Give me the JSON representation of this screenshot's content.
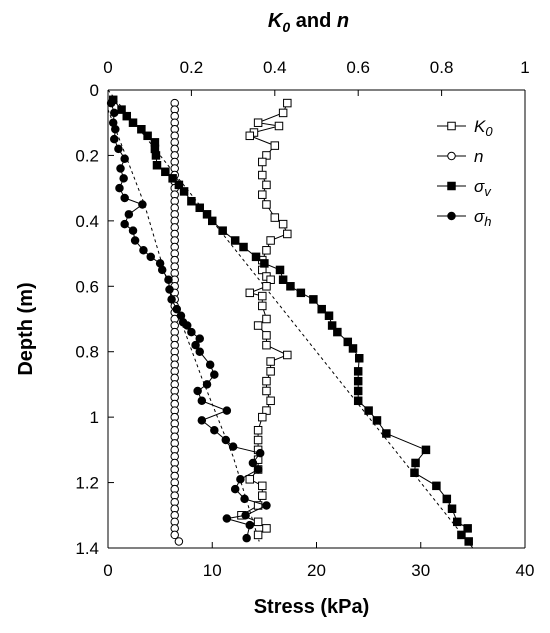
{
  "chart_data": {
    "type": "scatter",
    "title": "",
    "xlabel_bottom": "Stress (kPa)",
    "xlabel_top_parts": [
      "K",
      "0",
      " and ",
      "n"
    ],
    "ylabel": "Depth (m)",
    "xlim_bottom": [
      0,
      40
    ],
    "xlim_top": [
      0,
      1
    ],
    "ylim": [
      0,
      1.4
    ],
    "y_inverted": true,
    "grid": false,
    "legend_position": "top-right",
    "x_ticks_bottom": [
      "0",
      "10",
      "20",
      "30",
      "40"
    ],
    "x_ticks_top": [
      "0",
      "0.2",
      "0.4",
      "0.6",
      "0.8",
      "1"
    ],
    "y_ticks": [
      "0",
      "0.2",
      "0.4",
      "0.6",
      "0.8",
      "1",
      "1.2",
      "1.4"
    ],
    "legend": [
      {
        "label": "K",
        "sub": "0",
        "marker": "open-square"
      },
      {
        "label": "n",
        "sub": "",
        "marker": "open-circle"
      },
      {
        "label": "σ",
        "sub": "v",
        "marker": "filled-square"
      },
      {
        "label": "σ",
        "sub": "h",
        "marker": "filled-circle"
      }
    ],
    "series": [
      {
        "key": "K0",
        "axis": "top",
        "marker": "open-square",
        "points": [
          [
            0.43,
            0.04
          ],
          [
            0.42,
            0.07
          ],
          [
            0.36,
            0.1
          ],
          [
            0.41,
            0.11
          ],
          [
            0.35,
            0.13
          ],
          [
            0.34,
            0.14
          ],
          [
            0.4,
            0.17
          ],
          [
            0.38,
            0.2
          ],
          [
            0.37,
            0.22
          ],
          [
            0.37,
            0.26
          ],
          [
            0.38,
            0.29
          ],
          [
            0.37,
            0.32
          ],
          [
            0.38,
            0.35
          ],
          [
            0.4,
            0.39
          ],
          [
            0.42,
            0.41
          ],
          [
            0.43,
            0.44
          ],
          [
            0.39,
            0.46
          ],
          [
            0.38,
            0.49
          ],
          [
            0.37,
            0.52
          ],
          [
            0.37,
            0.55
          ],
          [
            0.38,
            0.57
          ],
          [
            0.39,
            0.58
          ],
          [
            0.38,
            0.6
          ],
          [
            0.34,
            0.62
          ],
          [
            0.37,
            0.63
          ],
          [
            0.37,
            0.66
          ],
          [
            0.38,
            0.7
          ],
          [
            0.36,
            0.72
          ],
          [
            0.38,
            0.75
          ],
          [
            0.38,
            0.78
          ],
          [
            0.43,
            0.81
          ],
          [
            0.39,
            0.83
          ],
          [
            0.39,
            0.86
          ],
          [
            0.38,
            0.89
          ],
          [
            0.38,
            0.92
          ],
          [
            0.39,
            0.95
          ],
          [
            0.38,
            0.98
          ],
          [
            0.37,
            1.0
          ],
          [
            0.36,
            1.04
          ],
          [
            0.36,
            1.07
          ],
          [
            0.36,
            1.1
          ],
          [
            0.36,
            1.13
          ],
          [
            0.36,
            1.16
          ],
          [
            0.34,
            1.19
          ],
          [
            0.37,
            1.21
          ],
          [
            0.37,
            1.24
          ],
          [
            0.36,
            1.27
          ],
          [
            0.32,
            1.3
          ],
          [
            0.36,
            1.32
          ],
          [
            0.38,
            1.34
          ],
          [
            0.36,
            1.36
          ]
        ]
      },
      {
        "key": "n",
        "axis": "top",
        "marker": "open-circle",
        "points": [
          [
            0.16,
            0.04
          ],
          [
            0.16,
            0.06
          ],
          [
            0.16,
            0.08
          ],
          [
            0.16,
            0.1
          ],
          [
            0.16,
            0.12
          ],
          [
            0.16,
            0.14
          ],
          [
            0.16,
            0.16
          ],
          [
            0.16,
            0.18
          ],
          [
            0.16,
            0.2
          ],
          [
            0.16,
            0.22
          ],
          [
            0.16,
            0.24
          ],
          [
            0.16,
            0.26
          ],
          [
            0.16,
            0.28
          ],
          [
            0.16,
            0.3
          ],
          [
            0.16,
            0.32
          ],
          [
            0.16,
            0.34
          ],
          [
            0.16,
            0.36
          ],
          [
            0.16,
            0.38
          ],
          [
            0.16,
            0.4
          ],
          [
            0.16,
            0.42
          ],
          [
            0.16,
            0.44
          ],
          [
            0.16,
            0.46
          ],
          [
            0.16,
            0.48
          ],
          [
            0.16,
            0.5
          ],
          [
            0.16,
            0.52
          ],
          [
            0.16,
            0.54
          ],
          [
            0.16,
            0.56
          ],
          [
            0.16,
            0.58
          ],
          [
            0.16,
            0.6
          ],
          [
            0.16,
            0.62
          ],
          [
            0.16,
            0.64
          ],
          [
            0.16,
            0.66
          ],
          [
            0.16,
            0.68
          ],
          [
            0.16,
            0.7
          ],
          [
            0.16,
            0.72
          ],
          [
            0.16,
            0.74
          ],
          [
            0.16,
            0.76
          ],
          [
            0.16,
            0.78
          ],
          [
            0.16,
            0.8
          ],
          [
            0.16,
            0.82
          ],
          [
            0.16,
            0.84
          ],
          [
            0.16,
            0.86
          ],
          [
            0.16,
            0.88
          ],
          [
            0.16,
            0.9
          ],
          [
            0.16,
            0.92
          ],
          [
            0.16,
            0.94
          ],
          [
            0.16,
            0.96
          ],
          [
            0.16,
            0.98
          ],
          [
            0.16,
            1.0
          ],
          [
            0.16,
            1.02
          ],
          [
            0.16,
            1.04
          ],
          [
            0.16,
            1.06
          ],
          [
            0.16,
            1.08
          ],
          [
            0.16,
            1.1
          ],
          [
            0.16,
            1.12
          ],
          [
            0.16,
            1.14
          ],
          [
            0.16,
            1.16
          ],
          [
            0.16,
            1.18
          ],
          [
            0.16,
            1.2
          ],
          [
            0.16,
            1.22
          ],
          [
            0.16,
            1.24
          ],
          [
            0.16,
            1.26
          ],
          [
            0.16,
            1.28
          ],
          [
            0.16,
            1.3
          ],
          [
            0.16,
            1.32
          ],
          [
            0.16,
            1.34
          ],
          [
            0.16,
            1.36
          ],
          [
            0.17,
            1.38
          ]
        ]
      },
      {
        "key": "sigma_v",
        "axis": "bottom",
        "marker": "filled-square",
        "points": [
          [
            0.5,
            0.03
          ],
          [
            1.3,
            0.06
          ],
          [
            1.8,
            0.08
          ],
          [
            2.4,
            0.1
          ],
          [
            3.2,
            0.12
          ],
          [
            3.8,
            0.14
          ],
          [
            4.5,
            0.16
          ],
          [
            4.5,
            0.18
          ],
          [
            4.6,
            0.2
          ],
          [
            4.7,
            0.23
          ],
          [
            5.5,
            0.25
          ],
          [
            6.2,
            0.27
          ],
          [
            6.8,
            0.29
          ],
          [
            7.3,
            0.31
          ],
          [
            8.0,
            0.34
          ],
          [
            8.8,
            0.36
          ],
          [
            9.5,
            0.38
          ],
          [
            10.0,
            0.4
          ],
          [
            11.0,
            0.43
          ],
          [
            12.2,
            0.46
          ],
          [
            13.0,
            0.48
          ],
          [
            14.2,
            0.51
          ],
          [
            15.0,
            0.53
          ],
          [
            16.5,
            0.55
          ],
          [
            16.8,
            0.58
          ],
          [
            17.5,
            0.6
          ],
          [
            18.5,
            0.62
          ],
          [
            19.7,
            0.64
          ],
          [
            20.5,
            0.67
          ],
          [
            21.2,
            0.69
          ],
          [
            21.5,
            0.72
          ],
          [
            22.0,
            0.74
          ],
          [
            23.0,
            0.77
          ],
          [
            23.5,
            0.79
          ],
          [
            24.1,
            0.82
          ],
          [
            24.0,
            0.86
          ],
          [
            24.0,
            0.89
          ],
          [
            24.0,
            0.92
          ],
          [
            24.0,
            0.95
          ],
          [
            25.0,
            0.98
          ],
          [
            25.8,
            1.01
          ],
          [
            26.7,
            1.05
          ],
          [
            30.5,
            1.1
          ],
          [
            29.5,
            1.14
          ],
          [
            29.4,
            1.17
          ],
          [
            31.5,
            1.21
          ],
          [
            32.5,
            1.25
          ],
          [
            33.0,
            1.28
          ],
          [
            33.5,
            1.32
          ],
          [
            34.5,
            1.34
          ],
          [
            33.9,
            1.36
          ],
          [
            34.6,
            1.38
          ]
        ]
      },
      {
        "key": "sigma_h",
        "axis": "bottom",
        "marker": "filled-circle",
        "points": [
          [
            0.3,
            0.04
          ],
          [
            0.6,
            0.07
          ],
          [
            0.5,
            0.1
          ],
          [
            0.7,
            0.12
          ],
          [
            0.6,
            0.15
          ],
          [
            1.0,
            0.18
          ],
          [
            1.6,
            0.21
          ],
          [
            1.2,
            0.24
          ],
          [
            1.5,
            0.27
          ],
          [
            1.1,
            0.3
          ],
          [
            1.6,
            0.33
          ],
          [
            3.3,
            0.35
          ],
          [
            2.0,
            0.38
          ],
          [
            1.6,
            0.41
          ],
          [
            2.4,
            0.43
          ],
          [
            2.6,
            0.46
          ],
          [
            3.4,
            0.49
          ],
          [
            4.1,
            0.51
          ],
          [
            5.0,
            0.53
          ],
          [
            5.2,
            0.55
          ],
          [
            5.8,
            0.58
          ],
          [
            5.9,
            0.61
          ],
          [
            6.1,
            0.64
          ],
          [
            6.6,
            0.67
          ],
          [
            7.0,
            0.69
          ],
          [
            7.2,
            0.71
          ],
          [
            7.6,
            0.72
          ],
          [
            8.0,
            0.74
          ],
          [
            8.8,
            0.76
          ],
          [
            8.4,
            0.78
          ],
          [
            8.8,
            0.8
          ],
          [
            9.8,
            0.84
          ],
          [
            10.2,
            0.87
          ],
          [
            9.5,
            0.9
          ],
          [
            8.6,
            0.92
          ],
          [
            9.0,
            0.95
          ],
          [
            11.4,
            0.98
          ],
          [
            9.0,
            1.01
          ],
          [
            10.2,
            1.04
          ],
          [
            11.3,
            1.07
          ],
          [
            12.0,
            1.09
          ],
          [
            14.6,
            1.11
          ],
          [
            13.9,
            1.14
          ],
          [
            14.4,
            1.16
          ],
          [
            12.7,
            1.19
          ],
          [
            12.2,
            1.22
          ],
          [
            13.1,
            1.25
          ],
          [
            15.2,
            1.27
          ],
          [
            13.2,
            1.3
          ],
          [
            11.4,
            1.31
          ],
          [
            13.6,
            1.33
          ],
          [
            13.3,
            1.37
          ]
        ]
      }
    ],
    "trendlines": [
      {
        "of": "sigma_v",
        "style": "dashed",
        "from": [
          0,
          0
        ],
        "to": [
          35,
          1.4
        ]
      },
      {
        "of": "sigma_h",
        "style": "dashed",
        "points": [
          [
            0,
            0.06
          ],
          [
            3.5,
            0.35
          ],
          [
            6.0,
            0.62
          ],
          [
            9.0,
            0.88
          ],
          [
            12.0,
            1.12
          ],
          [
            14.5,
            1.38
          ]
        ]
      }
    ]
  }
}
